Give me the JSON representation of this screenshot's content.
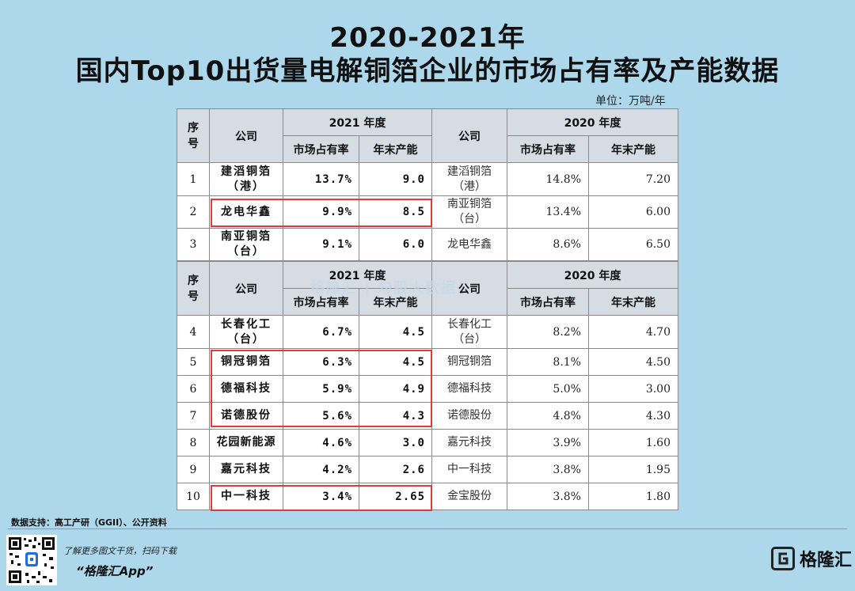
{
  "title": {
    "line1": "2020-2021年",
    "line2": "国内Top10出货量电解铜箔企业的市场占有率及产能数据"
  },
  "unit": "单位：万吨/年",
  "headers": {
    "index": "序号",
    "company": "公司",
    "year2021": "2021 年度",
    "year2020": "2020 年度",
    "share": "市场占有率",
    "capacity": "年末产能"
  },
  "top_rows": [
    {
      "idx": "1",
      "co21": "建滔铜箔（港）",
      "share21": "13.7%",
      "cap21": "9.0",
      "co20": "建滔铜箔（港）",
      "share20": "14.8%",
      "cap20": "7.20"
    },
    {
      "idx": "2",
      "co21": "龙电华鑫",
      "share21": "9.9%",
      "cap21": "8.5",
      "co20": "南亚铜箔（台）",
      "share20": "13.4%",
      "cap20": "6.00"
    },
    {
      "idx": "3",
      "co21": "南亚铜箔（台）",
      "share21": "9.1%",
      "cap21": "6.0",
      "co20": "龙电华鑫",
      "share20": "8.6%",
      "cap20": "6.50"
    }
  ],
  "bottom_rows": [
    {
      "idx": "4",
      "co21": "长春化工（台）",
      "share21": "6.7%",
      "cap21": "4.5",
      "co20": "长春化工（台）",
      "share20": "8.2%",
      "cap20": "4.70"
    },
    {
      "idx": "5",
      "co21": "铜冠铜箔",
      "share21": "6.3%",
      "cap21": "4.5",
      "co20": "铜冠铜箔",
      "share20": "8.1%",
      "cap20": "4.50"
    },
    {
      "idx": "6",
      "co21": "德福科技",
      "share21": "5.9%",
      "cap21": "4.9",
      "co20": "德福科技",
      "share20": "5.0%",
      "cap20": "3.00"
    },
    {
      "idx": "7",
      "co21": "诺德股份",
      "share21": "5.6%",
      "cap21": "4.3",
      "co20": "诺德股份",
      "share20": "4.8%",
      "cap20": "4.30"
    },
    {
      "idx": "8",
      "co21": "花园新能源",
      "share21": "4.6%",
      "cap21": "3.0",
      "co20": "嘉元科技",
      "share20": "3.9%",
      "cap20": "1.60"
    },
    {
      "idx": "9",
      "co21": "嘉元科技",
      "share21": "4.2%",
      "cap21": "2.6",
      "co20": "中一科技",
      "share20": "3.8%",
      "cap20": "1.95"
    },
    {
      "idx": "10",
      "co21": "中一科技",
      "share21": "3.4%",
      "cap21": "2.65",
      "co20": "金宝股份",
      "share20": "3.8%",
      "cap20": "1.80"
    }
  ],
  "watermark": "格隆汇 | 勾股大数据",
  "source": "数据支持：高工产研（GGII）、公开资料",
  "promo": {
    "line1": "了解更多图文干货，扫码下载",
    "line2": "“格隆汇App”"
  },
  "logo_text": "格隆汇",
  "colors": {
    "background": "#add8ec",
    "header": "#d5dce3",
    "highlight": "#e03a3a"
  }
}
